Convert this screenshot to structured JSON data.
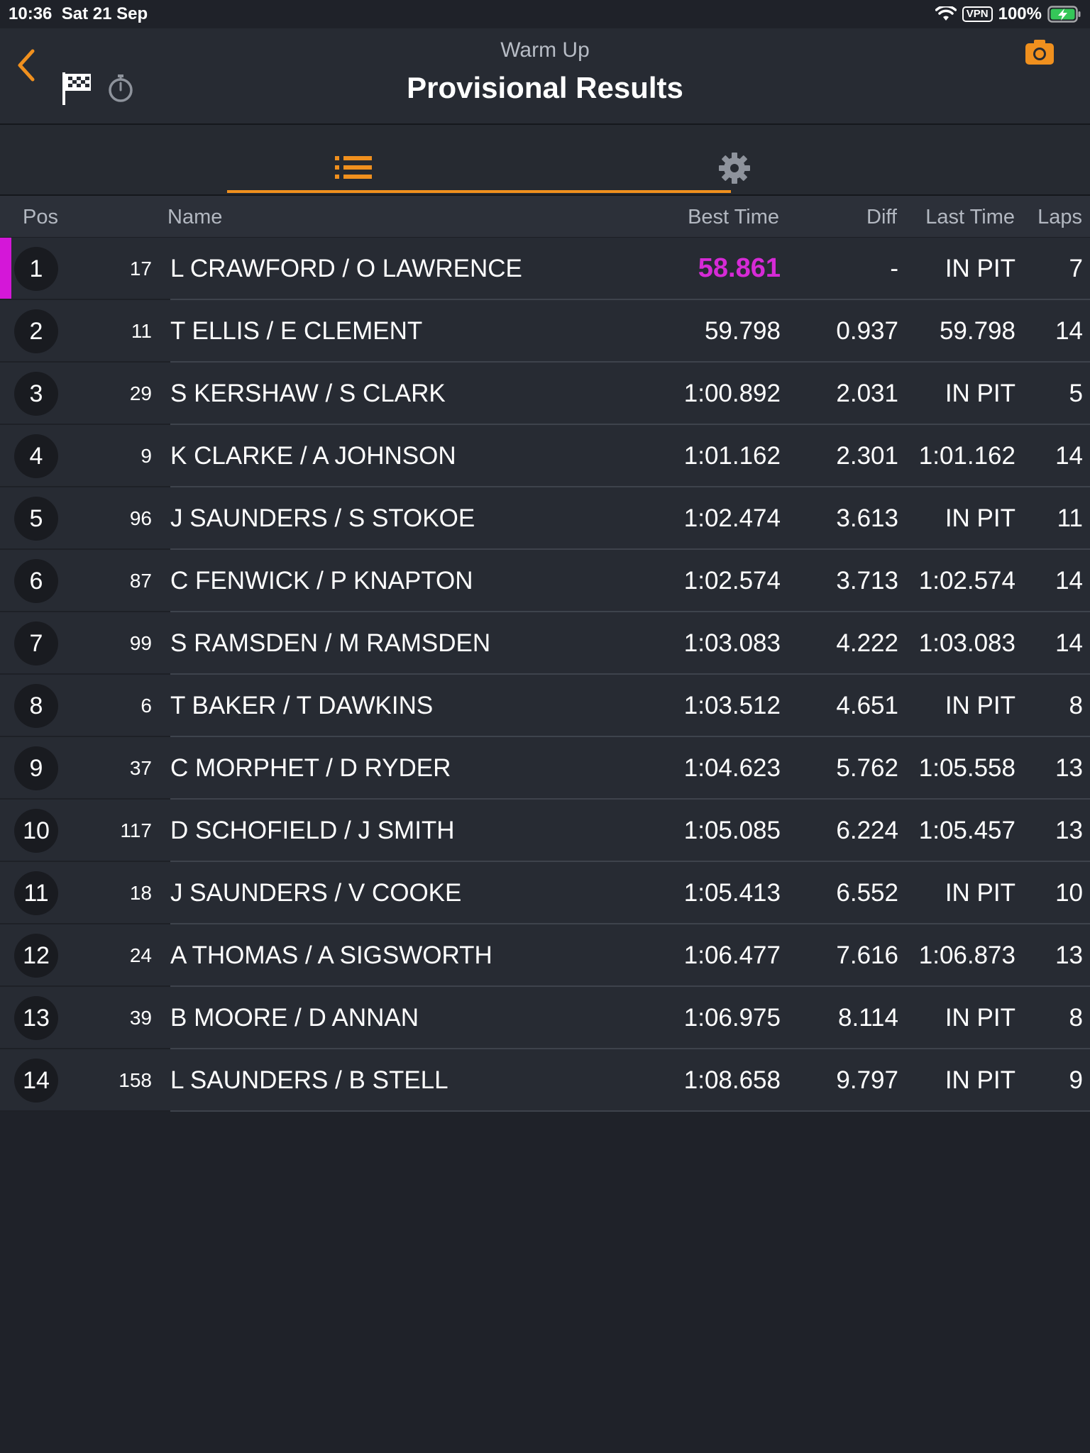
{
  "status_bar": {
    "time": "10:36",
    "date": "Sat 21 Sep",
    "vpn": "VPN",
    "battery": "100%"
  },
  "header": {
    "subtitle": "Warm Up",
    "title": "Provisional Results",
    "accent_color": "#f0901e",
    "fastest_color": "#d62ad6",
    "icons": [
      "back-chevron-icon",
      "checkered-flag-icon",
      "stopwatch-icon",
      "camera-icon"
    ]
  },
  "tabs": [
    {
      "icon": "list-icon",
      "active": true
    },
    {
      "icon": "gear-icon",
      "active": false
    }
  ],
  "columns": {
    "pos": "Pos",
    "name": "Name",
    "best": "Best Time",
    "diff": "Diff",
    "last": "Last Time",
    "laps": "Laps"
  },
  "rows": [
    {
      "pos": "1",
      "num": "17",
      "name": "L CRAWFORD / O LAWRENCE",
      "best": "58.861",
      "diff": "-",
      "last": "IN PIT",
      "laps": "7"
    },
    {
      "pos": "2",
      "num": "11",
      "name": "T ELLIS / E CLEMENT",
      "best": "59.798",
      "diff": "0.937",
      "last": "59.798",
      "laps": "14"
    },
    {
      "pos": "3",
      "num": "29",
      "name": "S KERSHAW / S CLARK",
      "best": "1:00.892",
      "diff": "2.031",
      "last": "IN PIT",
      "laps": "5"
    },
    {
      "pos": "4",
      "num": "9",
      "name": "K CLARKE / A JOHNSON",
      "best": "1:01.162",
      "diff": "2.301",
      "last": "1:01.162",
      "laps": "14"
    },
    {
      "pos": "5",
      "num": "96",
      "name": "J SAUNDERS / S STOKOE",
      "best": "1:02.474",
      "diff": "3.613",
      "last": "IN PIT",
      "laps": "11"
    },
    {
      "pos": "6",
      "num": "87",
      "name": "C FENWICK / P KNAPTON",
      "best": "1:02.574",
      "diff": "3.713",
      "last": "1:02.574",
      "laps": "14"
    },
    {
      "pos": "7",
      "num": "99",
      "name": "S RAMSDEN / M RAMSDEN",
      "best": "1:03.083",
      "diff": "4.222",
      "last": "1:03.083",
      "laps": "14"
    },
    {
      "pos": "8",
      "num": "6",
      "name": "T BAKER / T DAWKINS",
      "best": "1:03.512",
      "diff": "4.651",
      "last": "IN PIT",
      "laps": "8"
    },
    {
      "pos": "9",
      "num": "37",
      "name": "C MORPHET / D RYDER",
      "best": "1:04.623",
      "diff": "5.762",
      "last": "1:05.558",
      "laps": "13"
    },
    {
      "pos": "10",
      "num": "117",
      "name": "D SCHOFIELD / J SMITH",
      "best": "1:05.085",
      "diff": "6.224",
      "last": "1:05.457",
      "laps": "13"
    },
    {
      "pos": "11",
      "num": "18",
      "name": "J SAUNDERS / V COOKE",
      "best": "1:05.413",
      "diff": "6.552",
      "last": "IN PIT",
      "laps": "10"
    },
    {
      "pos": "12",
      "num": "24",
      "name": "A THOMAS / A SIGSWORTH",
      "best": "1:06.477",
      "diff": "7.616",
      "last": "1:06.873",
      "laps": "13"
    },
    {
      "pos": "13",
      "num": "39",
      "name": "B MOORE / D ANNAN",
      "best": "1:06.975",
      "diff": "8.114",
      "last": "IN PIT",
      "laps": "8"
    },
    {
      "pos": "14",
      "num": "158",
      "name": "L SAUNDERS / B STELL",
      "best": "1:08.658",
      "diff": "9.797",
      "last": "IN PIT",
      "laps": "9"
    }
  ]
}
